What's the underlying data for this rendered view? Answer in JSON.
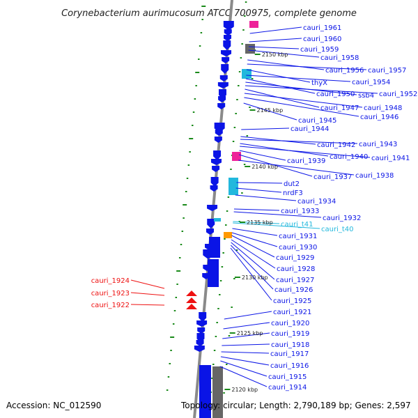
{
  "title": "Corynebacterium aurimucosum ATCC 700975, complete genome",
  "footer": {
    "accession": "Accession: NC_012590",
    "topology": "Topology: circular; Length: 2,790,189 bp; Genes: 2,597"
  },
  "colors": {
    "gene_blue": "#0a14e6",
    "trna_cyan": "#22b8dd",
    "rrna_magenta": "#ee2299",
    "gray": "#666666",
    "orange": "#ff9900",
    "red": "#ee1111",
    "tick_green": "#1a8a1a"
  },
  "kbp_markers": [
    "2150 kbp",
    "2145 kbp",
    "2140 kbp",
    "2135 kbp",
    "2130 kbp",
    "2125 kbp",
    "2120 kbp"
  ],
  "gene_labels_right": [
    {
      "name": "cauri_1961",
      "color": "blue"
    },
    {
      "name": "cauri_1960",
      "color": "blue"
    },
    {
      "name": "cauri_1959",
      "color": "blue"
    },
    {
      "name": "cauri_1958",
      "color": "blue"
    },
    {
      "name": "cauri_1956",
      "color": "blue"
    },
    {
      "name": "cauri_1957",
      "color": "blue"
    },
    {
      "name": "thyX",
      "color": "blue"
    },
    {
      "name": "cauri_1954",
      "color": "blue"
    },
    {
      "name": "cauri_1950",
      "color": "blue"
    },
    {
      "name": "ssb4",
      "color": "blue"
    },
    {
      "name": "cauri_1952",
      "color": "blue"
    },
    {
      "name": "cauri_1947",
      "color": "blue"
    },
    {
      "name": "cauri_1948",
      "color": "blue"
    },
    {
      "name": "cauri_1946",
      "color": "blue"
    },
    {
      "name": "cauri_1945",
      "color": "blue"
    },
    {
      "name": "cauri_1944",
      "color": "blue"
    },
    {
      "name": "cauri_1942",
      "color": "blue"
    },
    {
      "name": "cauri_1943",
      "color": "blue"
    },
    {
      "name": "cauri_1940",
      "color": "blue"
    },
    {
      "name": "cauri_1941",
      "color": "blue"
    },
    {
      "name": "cauri_1939",
      "color": "blue"
    },
    {
      "name": "cauri_1937",
      "color": "blue"
    },
    {
      "name": "cauri_1938",
      "color": "blue"
    },
    {
      "name": "dut2",
      "color": "blue"
    },
    {
      "name": "nrdF3",
      "color": "blue"
    },
    {
      "name": "cauri_1934",
      "color": "blue"
    },
    {
      "name": "cauri_1933",
      "color": "blue"
    },
    {
      "name": "cauri_1932",
      "color": "blue"
    },
    {
      "name": "cauri_t41",
      "color": "cyan"
    },
    {
      "name": "cauri_t40",
      "color": "cyan"
    },
    {
      "name": "cauri_1931",
      "color": "blue"
    },
    {
      "name": "cauri_1930",
      "color": "blue"
    },
    {
      "name": "cauri_1929",
      "color": "blue"
    },
    {
      "name": "cauri_1928",
      "color": "blue"
    },
    {
      "name": "cauri_1927",
      "color": "blue"
    },
    {
      "name": "cauri_1926",
      "color": "blue"
    },
    {
      "name": "cauri_1925",
      "color": "blue"
    },
    {
      "name": "cauri_1921",
      "color": "blue"
    },
    {
      "name": "cauri_1920",
      "color": "blue"
    },
    {
      "name": "cauri_1919",
      "color": "blue"
    },
    {
      "name": "cauri_1918",
      "color": "blue"
    },
    {
      "name": "cauri_1917",
      "color": "blue"
    },
    {
      "name": "cauri_1916",
      "color": "blue"
    },
    {
      "name": "cauri_1915",
      "color": "blue"
    },
    {
      "name": "cauri_1914",
      "color": "blue"
    }
  ],
  "gene_labels_left": [
    {
      "name": "cauri_1924",
      "color": "red"
    },
    {
      "name": "cauri_1923",
      "color": "red"
    },
    {
      "name": "cauri_1922",
      "color": "red"
    }
  ]
}
